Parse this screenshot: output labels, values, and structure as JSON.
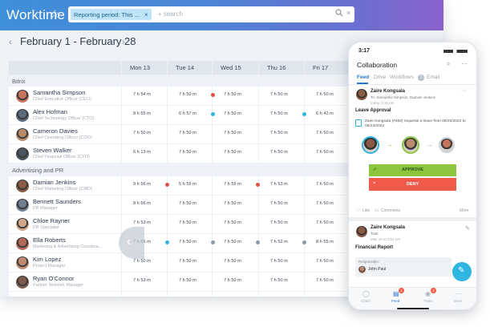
{
  "app": {
    "title": "Worktime"
  },
  "search": {
    "chip": "Reporting period: This ...",
    "placeholder": "+ search"
  },
  "period": {
    "label": "February 1 - February 28"
  },
  "days": [
    "Mon 13",
    "Tue 14",
    "Wed 15",
    "Thu 16",
    "Fri 17"
  ],
  "groups": [
    {
      "name": "Bitrix",
      "people": [
        {
          "name": "Samantha Simpson",
          "title": "Chief Executive Officer (CEO)",
          "cells": [
            "7 h 54 m",
            "7 h 50 m",
            "7 h 50 m",
            "7 h 50 m",
            "7 h 50 m"
          ]
        },
        {
          "name": "Alex Hofman",
          "title": "Chief Technology Officer (CTO)",
          "cells": [
            "8 h 55 m",
            "6 h 57 m",
            "7 h 50 m",
            "7 h 50 m",
            "6 h 42 m"
          ]
        },
        {
          "name": "Cameron Davies",
          "title": "Chief Operating Officer (COO)",
          "cells": [
            "7 h 50 m",
            "7 h 50 m",
            "7 h 50 m",
            "7 h 50 m",
            "7 h 50 m"
          ]
        },
        {
          "name": "Steven Walker",
          "title": "Chief Financial Officer (CFO)",
          "cells": [
            "6 h 13 m",
            "7 h 50 m",
            "7 h 50 m",
            "7 h 50 m",
            "7 h 50 m"
          ]
        }
      ]
    },
    {
      "name": "Advertising and PR",
      "people": [
        {
          "name": "Damian Jenkins",
          "title": "Chief Marketing Officer (CMO)",
          "cells": [
            "9 h 56 m",
            "5 h 55 m",
            "7 h 55 m",
            "7 h 53 m",
            "7 h 50 m"
          ]
        },
        {
          "name": "Bennett Saunders",
          "title": "PR Manager",
          "cells": [
            "8 h 56 m",
            "7 h 50 m",
            "7 h 50 m",
            "7 h 50 m",
            "7 h 50 m"
          ]
        },
        {
          "name": "Chloe Rayner",
          "title": "PR Specialist",
          "cells": [
            "7 h 53 m",
            "7 h 50 m",
            "7 h 50 m",
            "7 h 50 m",
            "7 h 50 m"
          ]
        },
        {
          "name": "Ella Roberts",
          "title": "Marketing & Advertising Coordina...",
          "cells": [
            "7 h 55 m",
            "7 h 50 m",
            "7 h 50 m",
            "7 h 52 m",
            "8 h 55 m"
          ]
        },
        {
          "name": "Kim Lopez",
          "title": "Project Manager",
          "cells": [
            "7 h 50 m",
            "7 h 50 m",
            "7 h 50 m",
            "7 h 50 m",
            "7 h 50 m"
          ]
        },
        {
          "name": "Ryan O'Connor",
          "title": "Partner Network Manager",
          "cells": [
            "7 h 53 m",
            "7 h 50 m",
            "7 h 50 m",
            "7 h 50 m",
            "7 h 50 m"
          ]
        }
      ]
    }
  ],
  "phone": {
    "time": "3:17",
    "header": "Collaboration",
    "tabs": [
      "Feed",
      "Drive",
      "Workflows",
      "Email"
    ],
    "tab_badge": "1",
    "post1": {
      "author": "Zaire Kongsala",
      "to": "To: Samantha Simpson, Damian Jenkins",
      "time": "today, 3:16 pm",
      "title": "Leave Approval",
      "text": "Zaire Kongsala (#458) requests a leave from 06/20/2022 to 06/24/2022",
      "approve": "APPROVE",
      "deny": "DENY",
      "like": "Like",
      "comments": "Comments",
      "more": "More"
    },
    "post2": {
      "author": "Zaire Kongsala",
      "task": "Task:",
      "date": "May 18 at 3:52 pm",
      "title": "Financial Report",
      "responsible_label": "Responsible:",
      "responsible": "John Paul"
    },
    "nav": [
      "Chats",
      "Feed",
      "Tasks",
      "More"
    ],
    "nav_badges": [
      "",
      "2",
      "3",
      ""
    ]
  },
  "colors": {
    "accent": "#3f8fd8",
    "approve": "#8cc63f",
    "deny": "#f05a4a",
    "alert": "#e0504a",
    "ok": "#2fb6e0"
  }
}
